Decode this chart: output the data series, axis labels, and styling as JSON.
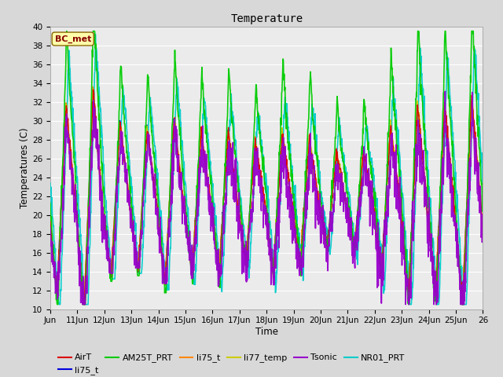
{
  "title": "Temperature",
  "xlabel": "Time",
  "ylabel": "Temperatures (C)",
  "annotation": "BC_met",
  "ylim": [
    10,
    40
  ],
  "xlim": [
    0,
    16
  ],
  "x_tick_labels": [
    "Jun",
    "11Jun",
    "12Jun",
    "13Jun",
    "14Jun",
    "15Jun",
    "16Jun",
    "17Jun",
    "18Jun",
    "19Jun",
    "20Jun",
    "21Jun",
    "22Jun",
    "23Jun",
    "24Jun",
    "25Jun",
    "26"
  ],
  "yticks": [
    10,
    12,
    14,
    16,
    18,
    20,
    22,
    24,
    26,
    28,
    30,
    32,
    34,
    36,
    38,
    40
  ],
  "series_order": [
    "NR01_PRT",
    "li75_t_b",
    "AirT",
    "li75_t",
    "li77_temp",
    "AM25T_PRT",
    "Tsonic"
  ],
  "series": {
    "AirT": {
      "color": "#dd0000",
      "lw": 1.0,
      "zorder": 4
    },
    "li75_t_b": {
      "color": "#0000dd",
      "lw": 1.0,
      "zorder": 4
    },
    "AM25T_PRT": {
      "color": "#00cc00",
      "lw": 1.2,
      "zorder": 4
    },
    "li75_t": {
      "color": "#ff8800",
      "lw": 1.0,
      "zorder": 4
    },
    "li77_temp": {
      "color": "#cccc00",
      "lw": 1.0,
      "zorder": 4
    },
    "Tsonic": {
      "color": "#9900cc",
      "lw": 1.2,
      "zorder": 5
    },
    "NR01_PRT": {
      "color": "#00cccc",
      "lw": 1.2,
      "zorder": 3
    }
  },
  "legend_entries": [
    {
      "label": "AirT",
      "color": "#dd0000"
    },
    {
      "label": "li75_t",
      "color": "#0000dd"
    },
    {
      "label": "AM25T_PRT",
      "color": "#00cc00"
    },
    {
      "label": "li75_t",
      "color": "#ff8800"
    },
    {
      "label": "li77_temp",
      "color": "#cccc00"
    },
    {
      "label": "Tsonic",
      "color": "#9900cc"
    },
    {
      "label": "NR01_PRT",
      "color": "#00cccc"
    }
  ],
  "fig_facecolor": "#d8d8d8",
  "ax_facecolor": "#ebebeb",
  "grid_color": "#ffffff",
  "figsize": [
    6.4,
    4.8
  ],
  "dpi": 100
}
